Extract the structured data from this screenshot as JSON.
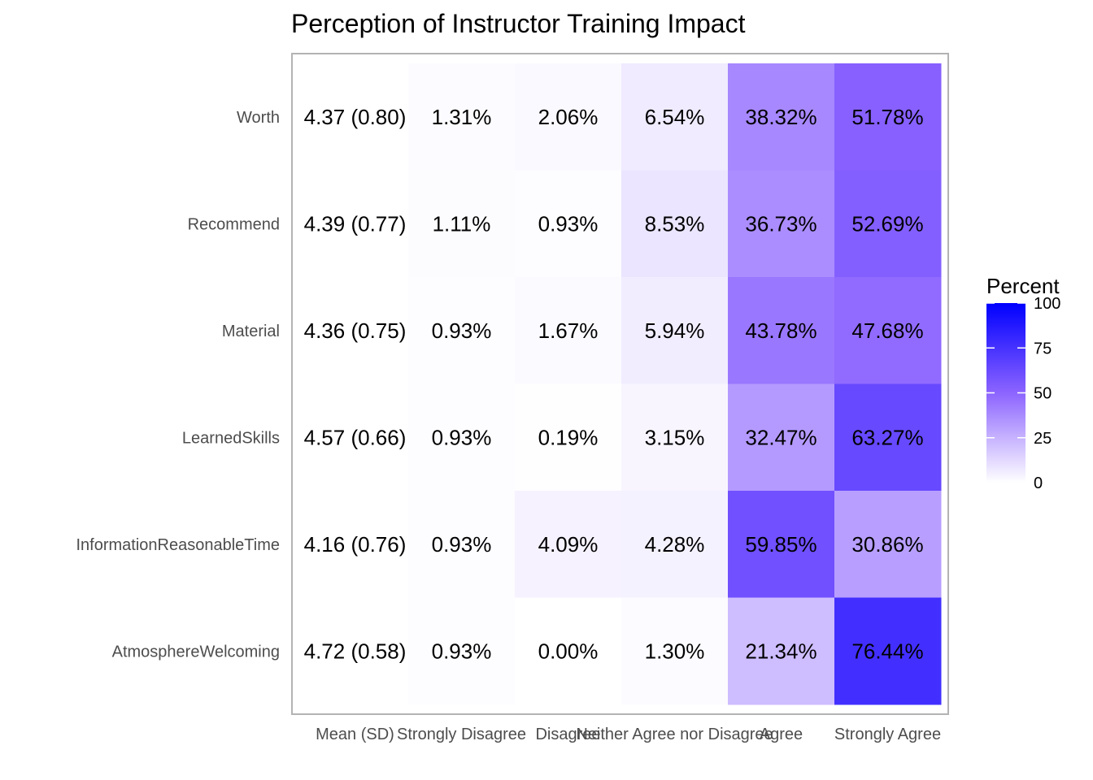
{
  "chart_data": {
    "type": "heatmap",
    "title": "Perception of Instructor Training Impact",
    "columns": [
      "Mean (SD)",
      "Strongly Disagree",
      "Disagree",
      "Neither Agree nor Disagree",
      "Agree",
      "Strongly Agree"
    ],
    "rows": [
      {
        "label": "Worth",
        "mean_sd": "4.37 (0.80)",
        "values": [
          1.31,
          2.06,
          6.54,
          38.32,
          51.78
        ],
        "labels": [
          "1.31%",
          "2.06%",
          "6.54%",
          "38.32%",
          "51.78%"
        ]
      },
      {
        "label": "Recommend",
        "mean_sd": "4.39 (0.77)",
        "values": [
          1.11,
          0.93,
          8.53,
          36.73,
          52.69
        ],
        "labels": [
          "1.11%",
          "0.93%",
          "8.53%",
          "36.73%",
          "52.69%"
        ]
      },
      {
        "label": "Material",
        "mean_sd": "4.36 (0.75)",
        "values": [
          0.93,
          1.67,
          5.94,
          43.78,
          47.68
        ],
        "labels": [
          "0.93%",
          "1.67%",
          "5.94%",
          "43.78%",
          "47.68%"
        ]
      },
      {
        "label": "LearnedSkills",
        "mean_sd": "4.57 (0.66)",
        "values": [
          0.93,
          0.19,
          3.15,
          32.47,
          63.27
        ],
        "labels": [
          "0.93%",
          "0.19%",
          "3.15%",
          "32.47%",
          "63.27%"
        ]
      },
      {
        "label": "InformationReasonableTime",
        "mean_sd": "4.16 (0.76)",
        "values": [
          0.93,
          4.09,
          4.28,
          59.85,
          30.86
        ],
        "labels": [
          "0.93%",
          "4.09%",
          "4.28%",
          "59.85%",
          "30.86%"
        ]
      },
      {
        "label": "AtmosphereWelcoming",
        "mean_sd": "4.72 (0.58)",
        "values": [
          0.93,
          0.0,
          1.3,
          21.34,
          76.44
        ],
        "labels": [
          "0.93%",
          "0.00%",
          "1.30%",
          "21.34%",
          "76.44%"
        ]
      }
    ],
    "legend": {
      "title": "Percent",
      "placement": "right",
      "range": [
        0,
        100
      ],
      "ticks": [
        0,
        25,
        50,
        75,
        100
      ],
      "low_color": "#ffffff",
      "high_color": "#0000ff"
    },
    "mean_column_fill": "#ffffff",
    "grid": false,
    "panel_border_color": "#b3b3b3"
  }
}
